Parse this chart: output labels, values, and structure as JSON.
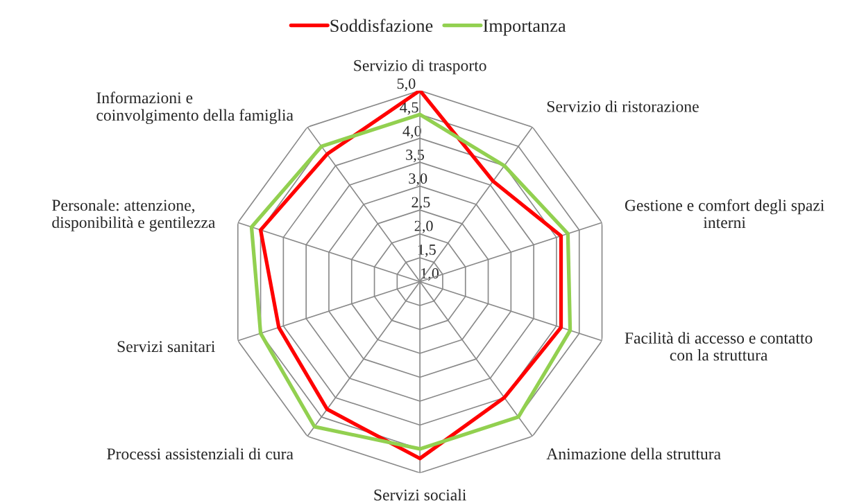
{
  "chart_data": {
    "type": "radar",
    "categories": [
      "Servizio di trasporto",
      "Servizio di ristorazione",
      "Gestione e comfort degli spazi\ninterni",
      "Facilità di accesso e contatto\ncon la struttura",
      "Animazione della struttura",
      "Servizi sociali",
      "Processi assistenziali di cura",
      "Servizi sanitari",
      "Personale: attenzione,\ndisponibilità e gentilezza",
      "Informazioni e\ncoinvolgimento della famiglia"
    ],
    "series": [
      {
        "name": "Soddisfazione",
        "color": "#ff0000",
        "values": [
          5.0,
          3.6,
          4.1,
          4.1,
          4.0,
          4.7,
          4.3,
          4.1,
          4.5,
          4.3
        ]
      },
      {
        "name": "Importanza",
        "color": "#92d050",
        "values": [
          4.5,
          4.0,
          4.25,
          4.3,
          4.5,
          4.5,
          4.75,
          4.5,
          4.7,
          4.5
        ]
      }
    ],
    "ylim": [
      1.0,
      5.0
    ],
    "yticks": [
      {
        "value": 1.0,
        "label": "1,0"
      },
      {
        "value": 1.5,
        "label": "1,5"
      },
      {
        "value": 2.0,
        "label": "2,0"
      },
      {
        "value": 2.5,
        "label": "2,5"
      },
      {
        "value": 3.0,
        "label": "3,0"
      },
      {
        "value": 3.5,
        "label": "3,5"
      },
      {
        "value": 4.0,
        "label": "4,0"
      },
      {
        "value": 4.5,
        "label": "4,5"
      },
      {
        "value": 5.0,
        "label": "5,0"
      }
    ],
    "grid": true,
    "legend": "top",
    "marker": "none",
    "line_style": "solid"
  }
}
